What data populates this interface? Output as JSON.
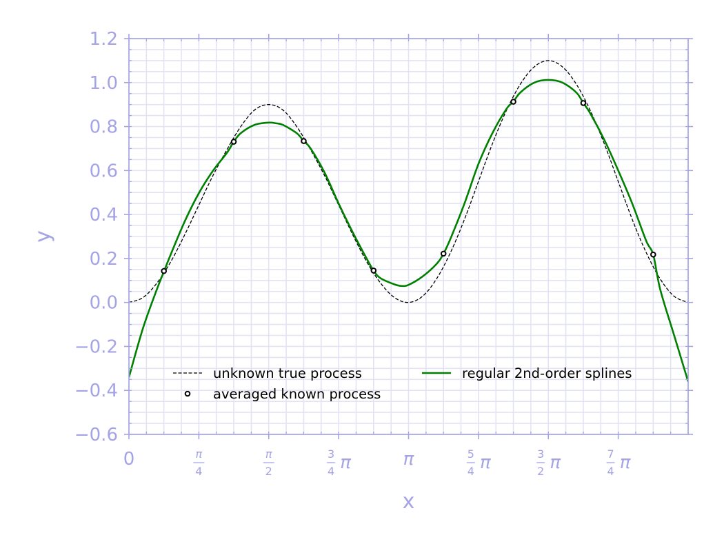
{
  "colors": {
    "axis": "#a3a3e6",
    "grid": "#e3e3f6",
    "true_process": "#000000",
    "splines": "#008000",
    "points": "#000000"
  },
  "chart_data": {
    "type": "line",
    "title": "",
    "xlabel": "x",
    "ylabel": "y",
    "xlim": [
      0,
      6.2832
    ],
    "ylim": [
      -0.6,
      1.2
    ],
    "grid": true,
    "legend_placement": "lower-center",
    "yticks": [
      {
        "value": -0.6,
        "label": "−0.6"
      },
      {
        "value": -0.4,
        "label": "−0.4"
      },
      {
        "value": -0.2,
        "label": "−0.2"
      },
      {
        "value": 0.0,
        "label": "0.0"
      },
      {
        "value": 0.2,
        "label": "0.2"
      },
      {
        "value": 0.4,
        "label": "0.4"
      },
      {
        "value": 0.6,
        "label": "0.6"
      },
      {
        "value": 0.8,
        "label": "0.8"
      },
      {
        "value": 1.0,
        "label": "1.0"
      },
      {
        "value": 1.2,
        "label": "1.2"
      }
    ],
    "xticks": [
      {
        "value": 0,
        "label": "0"
      },
      {
        "value": 0.7854,
        "label": "π/4"
      },
      {
        "value": 1.5708,
        "label": "π/2"
      },
      {
        "value": 2.3562,
        "label": "3/4π"
      },
      {
        "value": 3.1416,
        "label": "π"
      },
      {
        "value": 3.927,
        "label": "5/4π"
      },
      {
        "value": 4.7124,
        "label": "3/2π"
      },
      {
        "value": 5.4978,
        "label": "7/4π"
      }
    ],
    "series": [
      {
        "name": "unknown true process",
        "style": "dashed",
        "x": [
          0,
          0.1571,
          0.3142,
          0.4712,
          0.6283,
          0.7854,
          0.9425,
          1.0996,
          1.2566,
          1.4137,
          1.5708,
          1.7279,
          1.885,
          2.042,
          2.1991,
          2.3562,
          2.5133,
          2.6704,
          2.8274,
          2.9845,
          3.1416,
          3.2987,
          3.4558,
          3.6128,
          3.7699,
          3.927,
          4.0841,
          4.2412,
          4.3982,
          4.5553,
          4.7124,
          4.8695,
          5.0265,
          5.1836,
          5.3407,
          5.4978,
          5.6549,
          5.8119,
          5.969,
          6.1261,
          6.2832
        ],
        "y": [
          0.0,
          0.022,
          0.088,
          0.186,
          0.309,
          0.443,
          0.576,
          0.694,
          0.8,
          0.876,
          0.9,
          0.876,
          0.8,
          0.694,
          0.576,
          0.443,
          0.309,
          0.186,
          0.088,
          0.022,
          0.0,
          0.028,
          0.107,
          0.227,
          0.378,
          0.55,
          0.722,
          0.873,
          0.993,
          1.072,
          1.1,
          1.072,
          0.993,
          0.873,
          0.722,
          0.55,
          0.378,
          0.227,
          0.107,
          0.028,
          0.0
        ]
      },
      {
        "name": "averaged known process",
        "style": "markers",
        "x": [
          0.3927,
          1.1781,
          1.9635,
          2.7489,
          3.5343,
          4.3197,
          5.1051,
          5.8905
        ],
        "y": [
          0.143,
          0.731,
          0.734,
          0.145,
          0.222,
          0.913,
          0.907,
          0.218
        ]
      },
      {
        "name": "regular 2nd-order splines",
        "style": "solid",
        "x": [
          0,
          0.1571,
          0.3142,
          0.3927,
          0.4712,
          0.6283,
          0.7854,
          0.9425,
          1.0996,
          1.1781,
          1.2566,
          1.4137,
          1.5708,
          1.6493,
          1.7279,
          1.885,
          1.9635,
          2.042,
          2.1991,
          2.3562,
          2.5133,
          2.6704,
          2.7489,
          2.8274,
          2.9845,
          3.063,
          3.1416,
          3.2987,
          3.4558,
          3.5343,
          3.6128,
          3.7699,
          3.927,
          4.0841,
          4.2412,
          4.3197,
          4.3982,
          4.5553,
          4.7124,
          4.8695,
          5.0265,
          5.1051,
          5.1836,
          5.3407,
          5.4978,
          5.6549,
          5.8119,
          5.8905,
          5.969,
          6.1261,
          6.2832
        ],
        "y": [
          -0.34,
          -0.118,
          0.06,
          0.14,
          0.22,
          0.37,
          0.497,
          0.598,
          0.68,
          0.731,
          0.77,
          0.808,
          0.818,
          0.815,
          0.808,
          0.77,
          0.734,
          0.7,
          0.59,
          0.45,
          0.32,
          0.2,
          0.145,
          0.11,
          0.082,
          0.075,
          0.08,
          0.118,
          0.175,
          0.222,
          0.29,
          0.45,
          0.63,
          0.77,
          0.88,
          0.913,
          0.955,
          1.0,
          1.012,
          1.0,
          0.955,
          0.907,
          0.86,
          0.74,
          0.6,
          0.45,
          0.28,
          0.218,
          0.06,
          -0.15,
          -0.36
        ]
      }
    ]
  }
}
